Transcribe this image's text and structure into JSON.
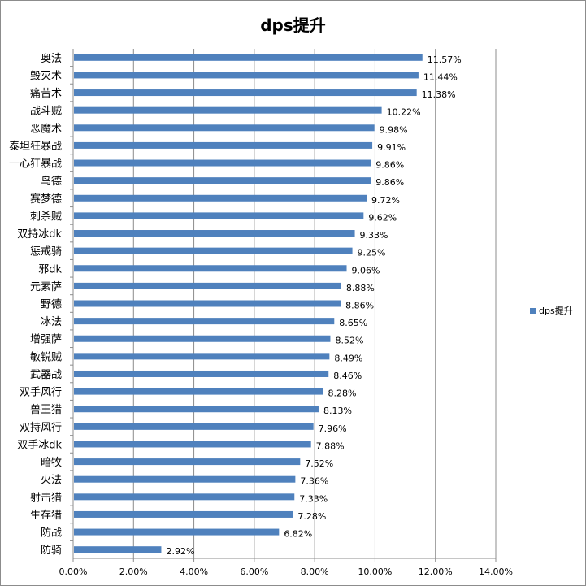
{
  "chart_data": {
    "type": "bar",
    "orientation": "horizontal",
    "title": "dps提升",
    "xlabel": "",
    "ylabel": "",
    "xlim": [
      0,
      14
    ],
    "x_ticks": [
      "0.00%",
      "2.00%",
      "4.00%",
      "6.00%",
      "8.00%",
      "10.00%",
      "12.00%",
      "14.00%"
    ],
    "grid": "vertical",
    "legend_position": "right",
    "bar_color": "#4f81bd",
    "categories": [
      "奥法",
      "毁灭术",
      "痛苦术",
      "战斗贼",
      "恶魔术",
      "泰坦狂暴战",
      "一心狂暴战",
      "鸟德",
      "赛梦德",
      "刺杀贼",
      "双持冰dk",
      "惩戒骑",
      "邪dk",
      "元素萨",
      "野德",
      "冰法",
      "增强萨",
      "敏锐贼",
      "武器战",
      "双手风行",
      "兽王猎",
      "双持风行",
      "双手冰dk",
      "暗牧",
      "火法",
      "射击猎",
      "生存猎",
      "防战",
      "防骑"
    ],
    "series": [
      {
        "name": "dps提升",
        "values": [
          11.57,
          11.44,
          11.38,
          10.22,
          9.98,
          9.91,
          9.86,
          9.86,
          9.72,
          9.62,
          9.33,
          9.25,
          9.06,
          8.88,
          8.86,
          8.65,
          8.52,
          8.49,
          8.46,
          8.28,
          8.13,
          7.96,
          7.88,
          7.52,
          7.36,
          7.33,
          7.28,
          6.82,
          2.92
        ],
        "labels": [
          "11.57%",
          "11.44%",
          "11.38%",
          "10.22%",
          "9.98%",
          "9.91%",
          "9.86%",
          "9.86%",
          "9.72%",
          "9.62%",
          "9.33%",
          "9.25%",
          "9.06%",
          "8.88%",
          "8.86%",
          "8.65%",
          "8.52%",
          "8.49%",
          "8.46%",
          "8.28%",
          "8.13%",
          "7.96%",
          "7.88%",
          "7.52%",
          "7.36%",
          "7.33%",
          "7.28%",
          "6.82%",
          "2.92%"
        ]
      }
    ]
  }
}
